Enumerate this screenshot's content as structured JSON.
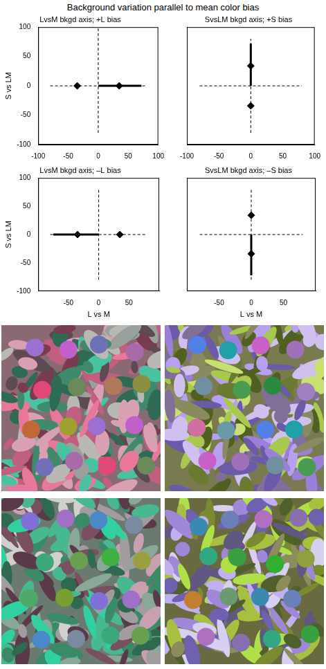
{
  "title": "Background variation parallel to mean color bias",
  "chart_data": [
    {
      "type": "scatter",
      "title": "LvsM bkgd axis; +L bias",
      "ylabel": "S vs LM",
      "xlim": [
        -100,
        100
      ],
      "ylim": [
        -100,
        100
      ],
      "xticks": [
        -100,
        -50,
        0,
        50,
        100
      ],
      "yticks": [
        -100,
        -50,
        0,
        50,
        100
      ],
      "grid": false,
      "series": [
        {
          "type": "line",
          "line_style": "dashed",
          "color": "#000000",
          "x": [
            -80,
            80
          ],
          "values": [
            0,
            0
          ]
        },
        {
          "type": "line",
          "line_style": "dashed",
          "color": "#000000",
          "x": [
            0,
            0
          ],
          "values": [
            -80,
            100
          ]
        },
        {
          "type": "line",
          "line_style": "solid",
          "color": "#000000",
          "x": [
            0,
            72
          ],
          "values": [
            0,
            0
          ]
        },
        {
          "type": "scatter",
          "marker": "diamond",
          "color": "#000000",
          "x": [
            -35,
            35
          ],
          "values": [
            0,
            0
          ]
        }
      ]
    },
    {
      "type": "scatter",
      "title": "SvsLM bkgd axis; +S bias",
      "xlim": [
        -100,
        100
      ],
      "ylim": [
        -100,
        100
      ],
      "xticks": [
        -100,
        -50,
        0,
        50,
        100
      ],
      "tick_labels": "x",
      "grid": false,
      "series": [
        {
          "type": "line",
          "line_style": "dashed",
          "color": "#000000",
          "x": [
            -80,
            80
          ],
          "values": [
            0,
            0
          ]
        },
        {
          "type": "line",
          "line_style": "dashed",
          "color": "#000000",
          "x": [
            0,
            0
          ],
          "values": [
            -80,
            80
          ]
        },
        {
          "type": "line",
          "line_style": "solid",
          "color": "#000000",
          "x": [
            0,
            0
          ],
          "values": [
            0,
            72
          ]
        },
        {
          "type": "scatter",
          "marker": "diamond",
          "color": "#000000",
          "x": [
            0,
            0
          ],
          "values": [
            34,
            -34
          ]
        }
      ]
    },
    {
      "type": "scatter",
      "title": "LvsM bkgd axis; –L bias",
      "xlabel": "L vs M",
      "ylabel": "S vs LM",
      "xlim": [
        -100,
        100
      ],
      "ylim": [
        -100,
        100
      ],
      "xticks": [
        -50,
        0,
        50
      ],
      "yticks": [
        -100,
        -50,
        0,
        50,
        100
      ],
      "grid": false,
      "series": [
        {
          "type": "line",
          "line_style": "dashed",
          "color": "#000000",
          "x": [
            -80,
            80
          ],
          "values": [
            0,
            0
          ]
        },
        {
          "type": "line",
          "line_style": "dashed",
          "color": "#000000",
          "x": [
            0,
            0
          ],
          "values": [
            -80,
            80
          ]
        },
        {
          "type": "line",
          "line_style": "solid",
          "color": "#000000",
          "x": [
            -75,
            0
          ],
          "values": [
            0,
            0
          ]
        },
        {
          "type": "scatter",
          "marker": "diamond",
          "color": "#000000",
          "x": [
            -35,
            35
          ],
          "values": [
            0,
            0
          ]
        }
      ]
    },
    {
      "type": "scatter",
      "title": "SvsLM bkgd axis; –S bias",
      "xlabel": "L vs M",
      "xlim": [
        -100,
        100
      ],
      "ylim": [
        -100,
        100
      ],
      "xticks": [
        -50,
        0,
        50
      ],
      "tick_labels": "x",
      "grid": false,
      "series": [
        {
          "type": "line",
          "line_style": "dashed",
          "color": "#000000",
          "x": [
            -80,
            80
          ],
          "values": [
            0,
            0
          ]
        },
        {
          "type": "line",
          "line_style": "dashed",
          "color": "#000000",
          "x": [
            0,
            0
          ],
          "values": [
            -80,
            80
          ]
        },
        {
          "type": "line",
          "line_style": "solid",
          "color": "#000000",
          "x": [
            0,
            0
          ],
          "values": [
            -72,
            0
          ]
        },
        {
          "type": "scatter",
          "marker": "diamond",
          "color": "#000000",
          "x": [
            0,
            0
          ],
          "values": [
            34,
            -34
          ]
        }
      ]
    }
  ]
}
